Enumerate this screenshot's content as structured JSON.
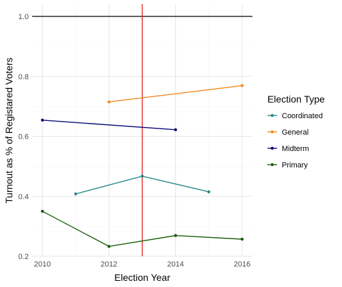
{
  "chart_data": {
    "type": "line",
    "xlabel": "Election Year",
    "ylabel": "Turnout as % of Registared Voters",
    "xlim": [
      2009.7,
      2016.3
    ],
    "ylim": [
      0.2,
      1.04
    ],
    "x_ticks": [
      2010,
      2012,
      2014,
      2016
    ],
    "y_ticks": [
      0.2,
      0.4,
      0.6,
      0.8,
      1.0
    ],
    "x_tick_labels": [
      "2010",
      "2012",
      "2014",
      "2016"
    ],
    "y_tick_labels": [
      "0.2",
      "0.4",
      "0.6",
      "0.8",
      "1.0"
    ],
    "grid": true,
    "legend": {
      "title": "Election Type",
      "position": "right"
    },
    "reference_lines": [
      {
        "orientation": "horizontal",
        "value": 1.0,
        "color": "#000000"
      },
      {
        "orientation": "vertical",
        "value": 2013,
        "color": "#e31a1c"
      }
    ],
    "series": [
      {
        "name": "Coordinated",
        "color": "#2a8a8c",
        "x": [
          2011,
          2013,
          2015
        ],
        "y": [
          0.408,
          0.467,
          0.415
        ]
      },
      {
        "name": "General",
        "color": "#f28a1e",
        "x": [
          2012,
          2016
        ],
        "y": [
          0.715,
          0.769
        ]
      },
      {
        "name": "Midterm",
        "color": "#0b0b7a",
        "x": [
          2010,
          2014
        ],
        "y": [
          0.654,
          0.622
        ]
      },
      {
        "name": "Primary",
        "color": "#1b5e0b",
        "x": [
          2010,
          2012,
          2014,
          2016
        ],
        "y": [
          0.35,
          0.233,
          0.269,
          0.257
        ]
      }
    ]
  }
}
